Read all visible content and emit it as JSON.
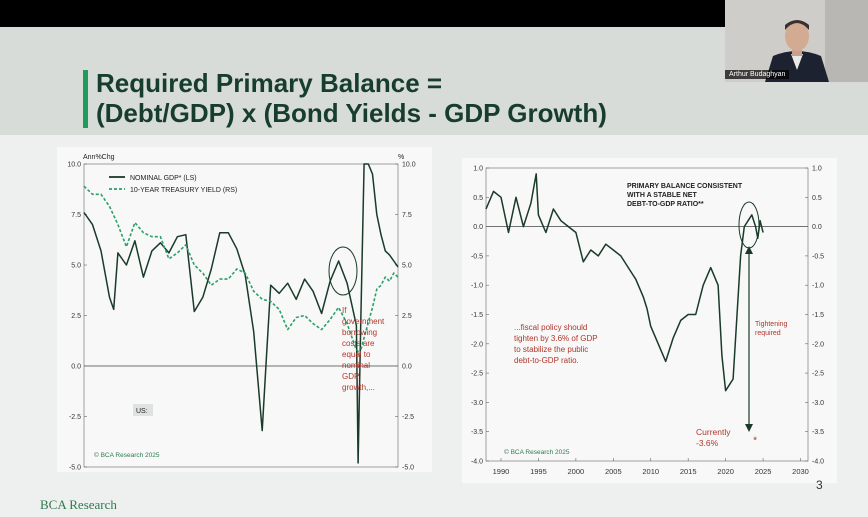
{
  "slide": {
    "title_line1": "Required Primary Balance =",
    "title_line2": "(Debt/GDP) x (Bond Yields - GDP Growth)",
    "brand": "BCA Research",
    "page_number": "3"
  },
  "video": {
    "participant_name": "Arthur Budaghyan"
  },
  "colors": {
    "title_accent": "#1f9b5a",
    "title_text": "#173d2c",
    "series_dark": "#1a3a2a",
    "series_green": "#2aa066",
    "annotation_red": "#b0362c"
  },
  "chart_data": [
    {
      "type": "line",
      "left_axis_title": "Ann%Chg",
      "right_axis_title": "%",
      "ylim_left": [
        -5.0,
        10.0
      ],
      "ylim_right": [
        -5.0,
        10.0
      ],
      "yticks_left": [
        "10.0",
        "7.5",
        "5.0",
        "2.5",
        "0.0",
        "-2.5",
        "-5.0"
      ],
      "yticks_right": [
        "10.0",
        "7.5",
        "5.0",
        "2.5",
        "0.0",
        "-2.5",
        "-5.0"
      ],
      "xlim": [
        1988,
        2025
      ],
      "series": [
        {
          "name": "NOMINAL GDP* (LS)",
          "style": "solid",
          "x": [
            1988,
            1989,
            1990,
            1991,
            1991.5,
            1992,
            1993,
            1994,
            1995,
            1996,
            1997,
            1998,
            1999,
            2000,
            2001,
            2002,
            2003,
            2004,
            2005,
            2006,
            2007,
            2008,
            2009,
            2009.5,
            2010,
            2011,
            2012,
            2013,
            2014,
            2015,
            2016,
            2017,
            2018,
            2019,
            2020.1,
            2020.3,
            2020.6,
            2021,
            2021.5,
            2022,
            2022.5,
            2023,
            2023.5,
            2024,
            2024.5,
            2025
          ],
          "values": [
            7.6,
            7.0,
            5.7,
            3.4,
            2.8,
            5.6,
            5.0,
            6.2,
            4.4,
            5.7,
            6.1,
            5.6,
            6.4,
            6.5,
            2.7,
            3.4,
            4.8,
            6.6,
            6.6,
            5.8,
            4.5,
            1.7,
            -3.2,
            0.5,
            4.0,
            3.6,
            4.1,
            3.3,
            4.3,
            3.7,
            2.6,
            4.2,
            5.2,
            4.1,
            2.0,
            -4.8,
            2.0,
            10.0,
            10.0,
            9.5,
            7.5,
            6.5,
            5.7,
            5.5,
            5.2,
            4.9
          ]
        },
        {
          "name": "10-YEAR TREASURY YIELD (RS)",
          "style": "dashed",
          "x": [
            1988,
            1989,
            1990,
            1991,
            1992,
            1993,
            1994,
            1995,
            1996,
            1997,
            1998,
            1999,
            2000,
            2001,
            2002,
            2003,
            2004,
            2005,
            2006,
            2007,
            2008,
            2009,
            2010,
            2011,
            2012,
            2013,
            2014,
            2015,
            2016,
            2017,
            2018,
            2019,
            2020,
            2020.5,
            2021,
            2022,
            2022.5,
            2023,
            2023.5,
            2024,
            2024.5,
            2025
          ],
          "values": [
            8.9,
            8.5,
            8.5,
            7.9,
            7.0,
            5.9,
            7.1,
            6.6,
            6.4,
            6.4,
            5.3,
            5.6,
            6.0,
            5.0,
            4.6,
            4.0,
            4.3,
            4.3,
            4.8,
            4.6,
            3.7,
            3.3,
            3.2,
            2.8,
            1.8,
            2.4,
            2.5,
            2.1,
            1.8,
            2.3,
            2.9,
            2.1,
            0.9,
            0.6,
            1.4,
            2.9,
            3.8,
            4.0,
            4.4,
            4.2,
            4.6,
            4.4
          ]
        }
      ],
      "annotation": "If government borrowing costs are equal to nominal GDP growth,...",
      "region_label": "US:",
      "source": "© BCA Research 2025"
    },
    {
      "type": "line",
      "ylim": [
        -4.0,
        1.0
      ],
      "yticks_left": [
        "1.0",
        "0.5",
        "0.0",
        "-0.5",
        "-1.0",
        "-1.5",
        "-2.0",
        "-2.5",
        "-3.0",
        "-3.5",
        "-4.0"
      ],
      "yticks_right": [
        "1.0",
        "0.5",
        "0.0",
        "-0.5",
        "-1.0",
        "-1.5",
        "-2.0",
        "-2.5",
        "-3.0",
        "-3.5",
        "-4.0"
      ],
      "xlim": [
        1988,
        2031
      ],
      "xticks": [
        "1990",
        "1995",
        "2000",
        "2005",
        "2010",
        "2015",
        "2020",
        "2025",
        "2030"
      ],
      "series": [
        {
          "name": "PRIMARY BALANCE CONSISTENT WITH A STABLE NET DEBT-TO-GDP RATIO**",
          "style": "solid",
          "x": [
            1988,
            1989,
            1990,
            1991,
            1992,
            1993,
            1994,
            1994.7,
            1995,
            1996,
            1997,
            1998,
            1999,
            2000,
            2001,
            2002,
            2003,
            2004,
            2005,
            2006,
            2007,
            2008,
            2009,
            2009.5,
            2010,
            2011,
            2012,
            2013,
            2014,
            2015,
            2016,
            2017,
            2018,
            2019,
            2019.5,
            2020,
            2020.5,
            2021,
            2022,
            2022.5,
            2023,
            2023.5,
            2024,
            2024.3,
            2024.6,
            2025
          ],
          "values": [
            0.3,
            0.6,
            0.5,
            -0.1,
            0.5,
            0.0,
            0.4,
            0.9,
            0.2,
            -0.1,
            0.3,
            0.1,
            0.0,
            -0.1,
            -0.6,
            -0.4,
            -0.5,
            -0.3,
            -0.4,
            -0.5,
            -0.7,
            -0.9,
            -1.2,
            -1.4,
            -1.7,
            -2.0,
            -2.3,
            -1.9,
            -1.6,
            -1.5,
            -1.5,
            -1.0,
            -0.7,
            -1.0,
            -2.2,
            -2.8,
            -2.7,
            -2.6,
            -0.5,
            0.0,
            0.1,
            0.2,
            0.0,
            -0.2,
            0.1,
            -0.1
          ]
        }
      ],
      "marker": {
        "label": "Currently",
        "value_text": "-3.6%",
        "value": -3.6,
        "x": 2025
      },
      "arrow_label": "Tightening required",
      "annotation": "...fiscal policy should tighten by 3.6% of GDP to stabilize the public debt-to-GDP ratio.",
      "source": "© BCA Research 2025"
    }
  ]
}
